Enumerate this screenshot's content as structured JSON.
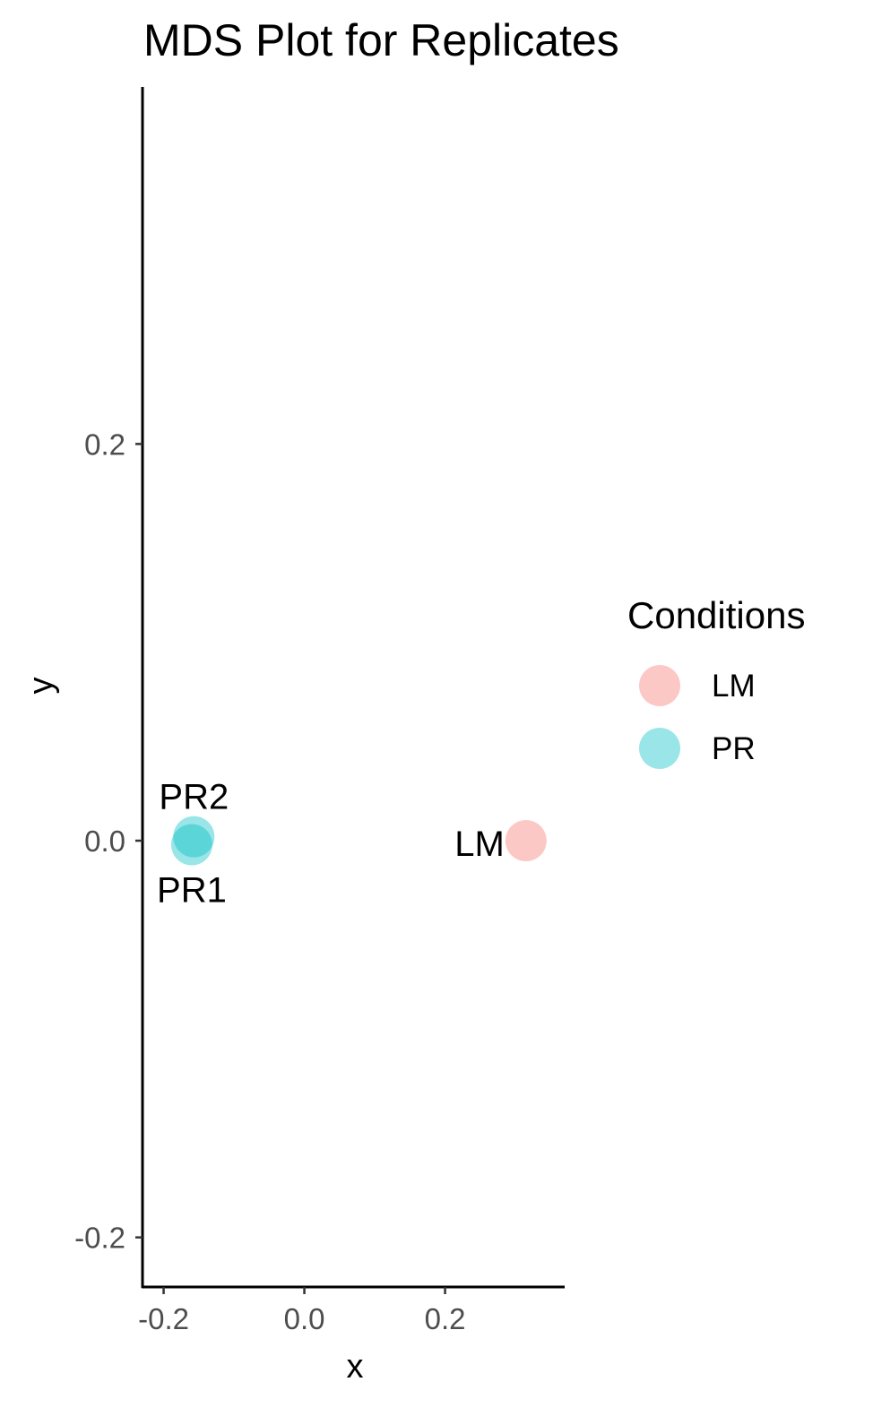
{
  "chart_data": {
    "type": "scatter",
    "title": "MDS Plot for Replicates",
    "xlabel": "x",
    "ylabel": "y",
    "xlim": [
      -0.23,
      0.37
    ],
    "ylim": [
      -0.225,
      0.38
    ],
    "x_ticks": [
      {
        "value": -0.2,
        "label": "-0.2"
      },
      {
        "value": 0.0,
        "label": "0.0"
      },
      {
        "value": 0.2,
        "label": "0.2"
      }
    ],
    "y_ticks": [
      {
        "value": -0.2,
        "label": "-0.2"
      },
      {
        "value": 0.0,
        "label": "0.0"
      },
      {
        "value": 0.2,
        "label": "0.2"
      }
    ],
    "grid": false,
    "legend": {
      "title": "Conditions",
      "position": "right",
      "entries": [
        {
          "label": "LM",
          "color": "#F8766D"
        },
        {
          "label": "PR",
          "color": "#00BFC4"
        }
      ]
    },
    "points": [
      {
        "label": "PR1",
        "condition": "PR",
        "x": -0.16,
        "y": -0.002,
        "label_position": "below"
      },
      {
        "label": "PR2",
        "condition": "PR",
        "x": -0.157,
        "y": 0.002,
        "label_position": "above"
      },
      {
        "label": "LM",
        "condition": "LM",
        "x": 0.315,
        "y": 0.0,
        "label_position": "left"
      }
    ],
    "point_opacity": 0.4
  }
}
